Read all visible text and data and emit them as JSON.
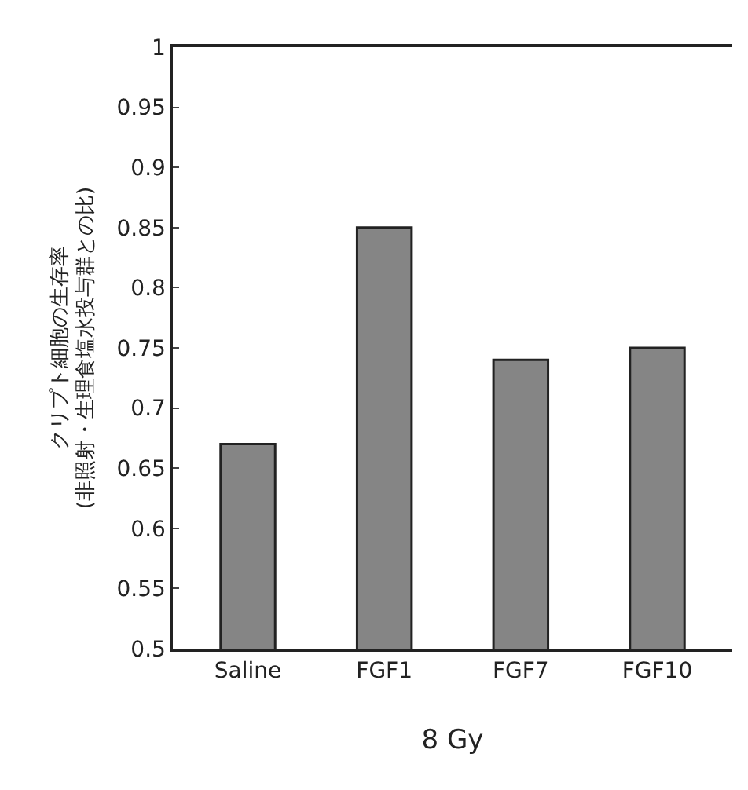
{
  "chart_data": {
    "type": "bar",
    "ylabel": "クリプト細胞の生存率\n(非照射・生理食塩水投与群との比)",
    "xlabel": "8 Gy",
    "categories": [
      "Saline",
      "FGF1",
      "FGF7",
      "FGF10"
    ],
    "values": [
      0.67,
      0.85,
      0.74,
      0.75
    ],
    "color": "#858585",
    "ylim": [
      0.5,
      1
    ],
    "yticks": [
      0.5,
      0.55,
      0.6,
      0.65,
      0.7,
      0.75,
      0.8,
      0.85,
      0.9,
      0.95,
      1
    ]
  }
}
